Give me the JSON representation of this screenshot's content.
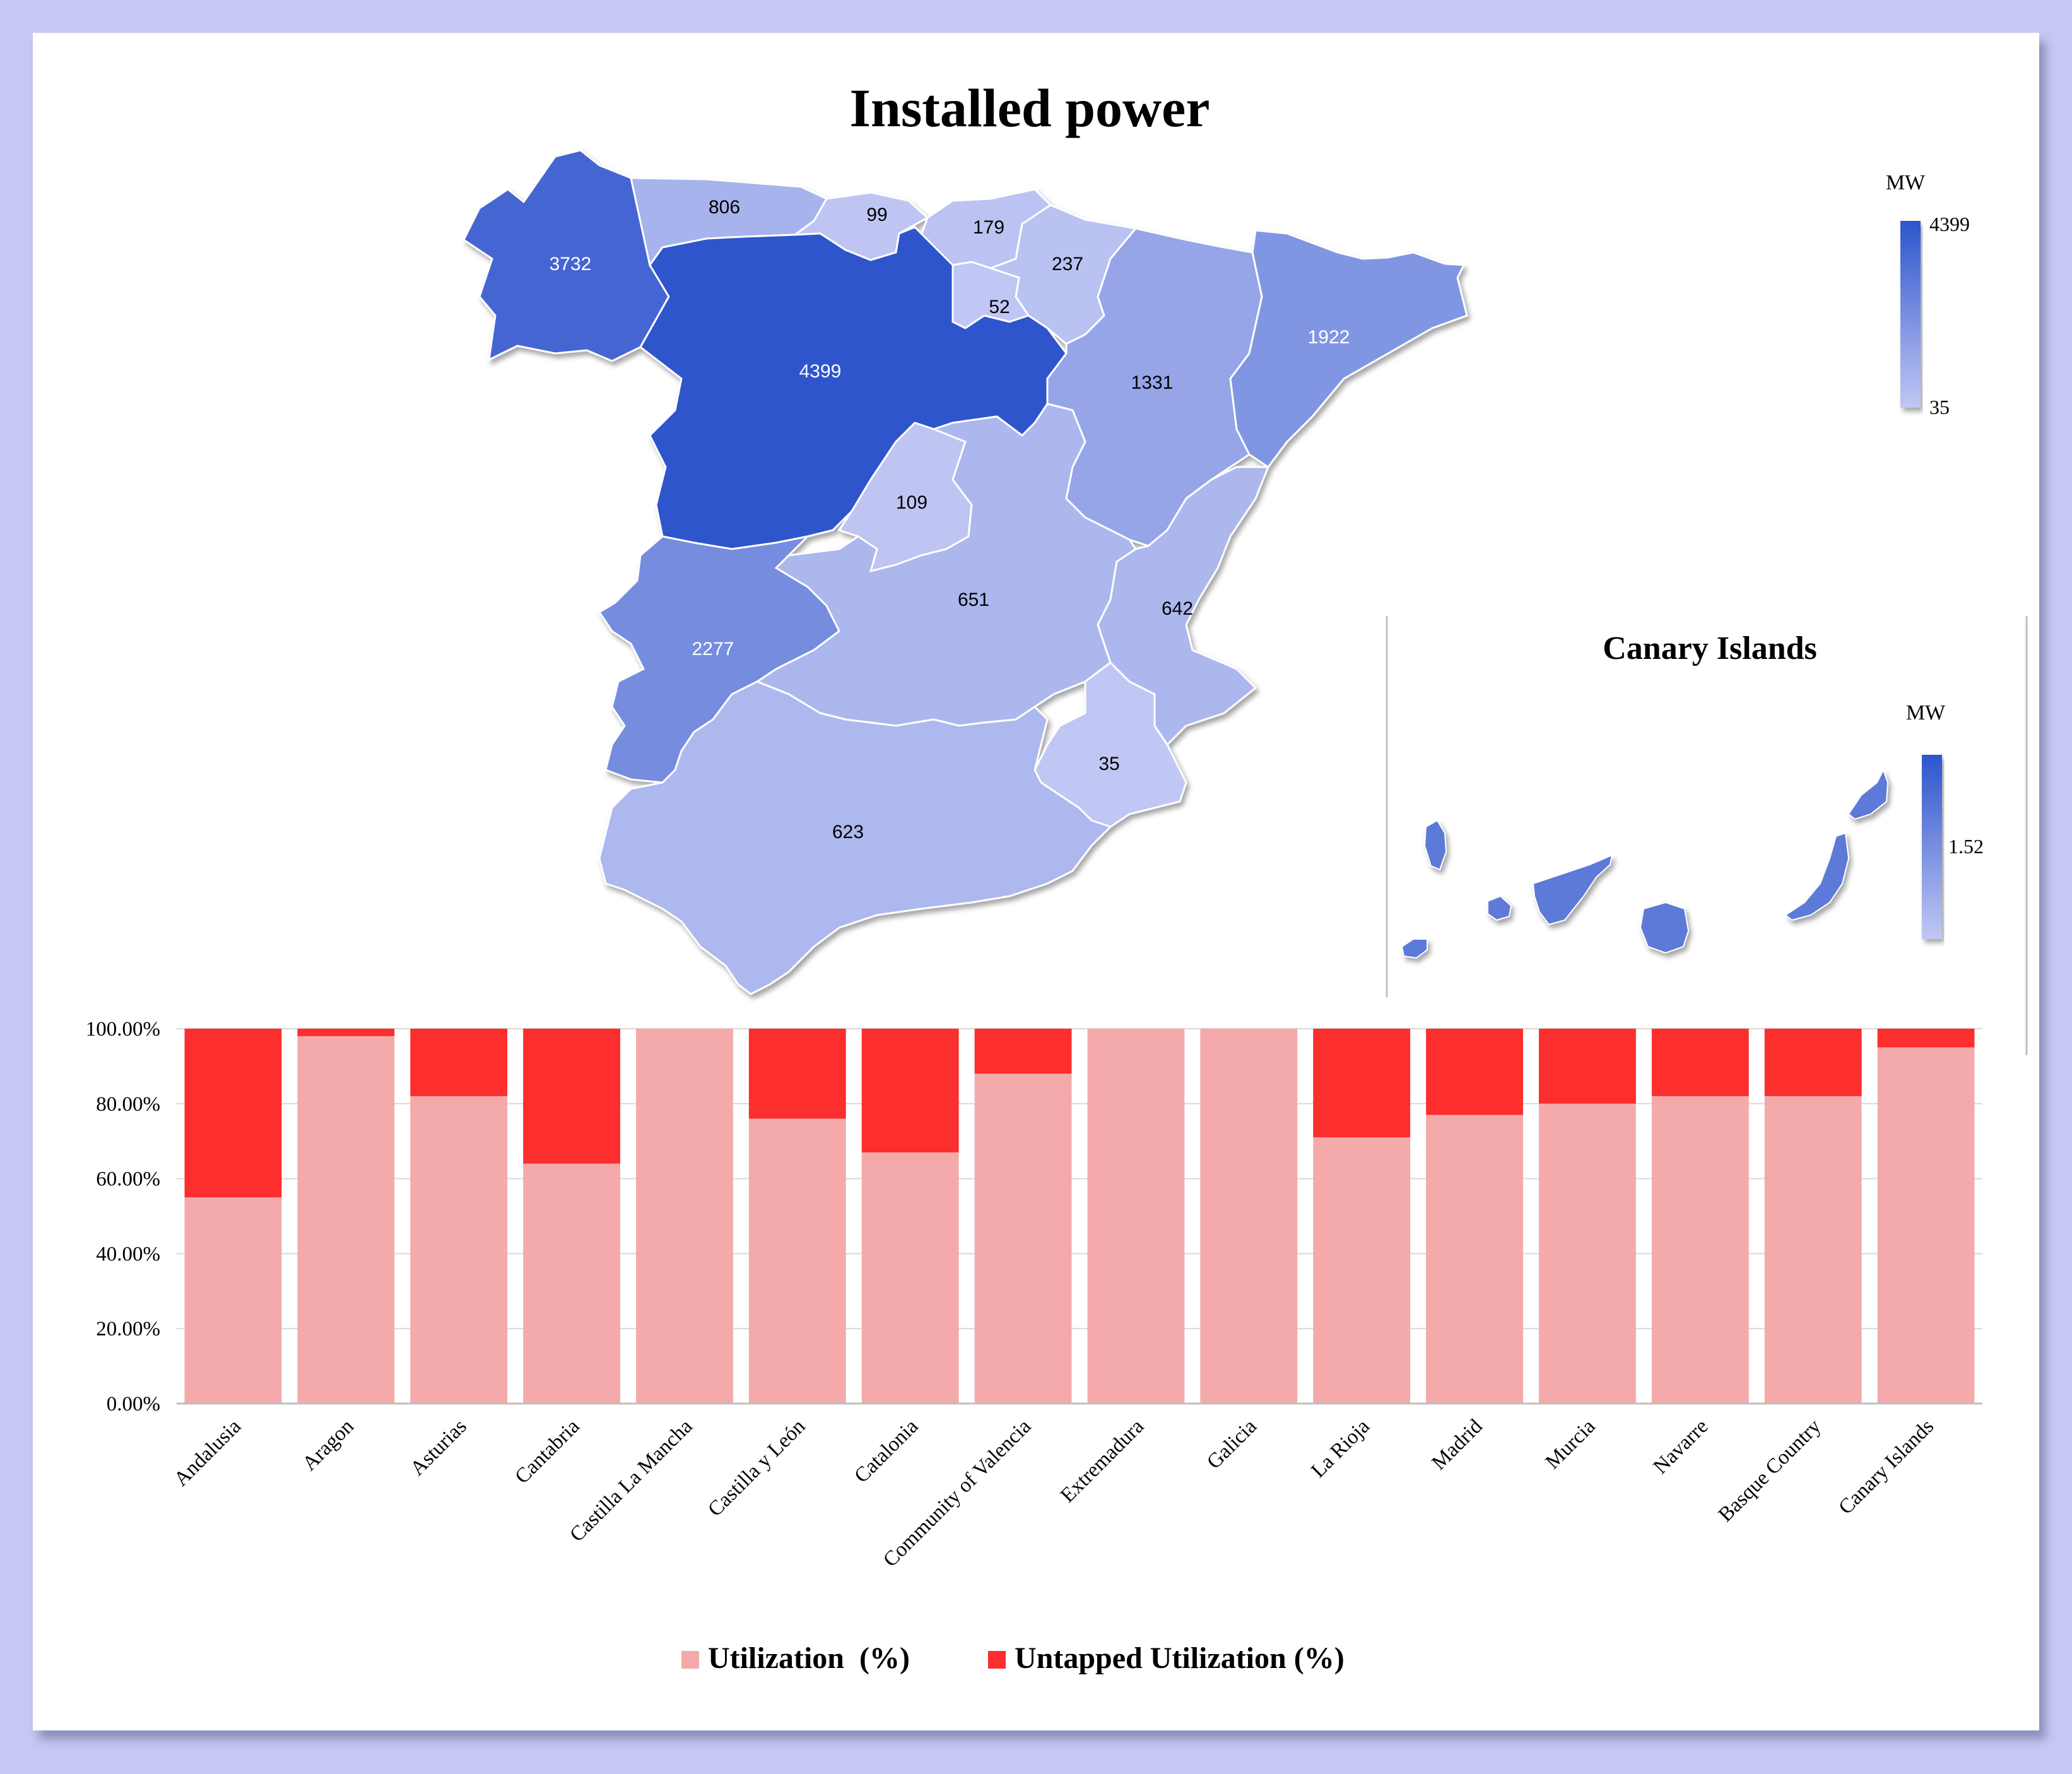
{
  "map": {
    "title": "Installed power",
    "unit": "MW",
    "scale_max": 4399,
    "scale_min": 35,
    "colors": {
      "low": "#c1c7f4",
      "high": "#2d55cc"
    },
    "regions": [
      {
        "name": "Galicia",
        "value": 3732
      },
      {
        "name": "Asturias",
        "value": 806
      },
      {
        "name": "Cantabria",
        "value": 99
      },
      {
        "name": "Basque Country",
        "value": 179
      },
      {
        "name": "Navarre",
        "value": 237
      },
      {
        "name": "La Rioja",
        "value": 52
      },
      {
        "name": "Castilla y León",
        "value": 4399
      },
      {
        "name": "Aragon",
        "value": 1331
      },
      {
        "name": "Catalonia",
        "value": 1922
      },
      {
        "name": "Madrid",
        "value": 109
      },
      {
        "name": "Castilla La Mancha",
        "value": 651
      },
      {
        "name": "Community of Valencia",
        "value": 642
      },
      {
        "name": "Extremadura",
        "value": 2277
      },
      {
        "name": "Murcia",
        "value": 35
      },
      {
        "name": "Andalusia",
        "value": 623
      }
    ]
  },
  "inset": {
    "title": "Canary Islands",
    "unit": "MW",
    "value": "1.52"
  },
  "chart_data": {
    "type": "bar",
    "stacked": true,
    "categories": [
      "Andalusia",
      "Aragon",
      "Asturias",
      "Cantabria",
      "Castilla La Mancha",
      "Castilla y León",
      "Catalonia",
      "Community of Valencia",
      "Extremadura",
      "Galicia",
      "La Rioja",
      "Madrid",
      "Murcia",
      "Navarre",
      "Basque Country",
      "Canary Islands"
    ],
    "series": [
      {
        "name": "Utilization  (%)",
        "color": "#f4aaaa",
        "values": [
          55,
          98,
          82,
          64,
          100,
          76,
          67,
          88,
          100,
          100,
          71,
          77,
          80,
          82,
          82,
          95
        ]
      },
      {
        "name": "Untapped Utilization (%)",
        "color": "#fc2e2e",
        "values": [
          45,
          2,
          18,
          36,
          0,
          24,
          33,
          12,
          0,
          0,
          29,
          23,
          20,
          18,
          18,
          5
        ]
      }
    ],
    "ylim": [
      0,
      100
    ],
    "yticks": [
      "0.00%",
      "20.00%",
      "40.00%",
      "60.00%",
      "80.00%",
      "100.00%"
    ],
    "legend_position": "bottom"
  }
}
